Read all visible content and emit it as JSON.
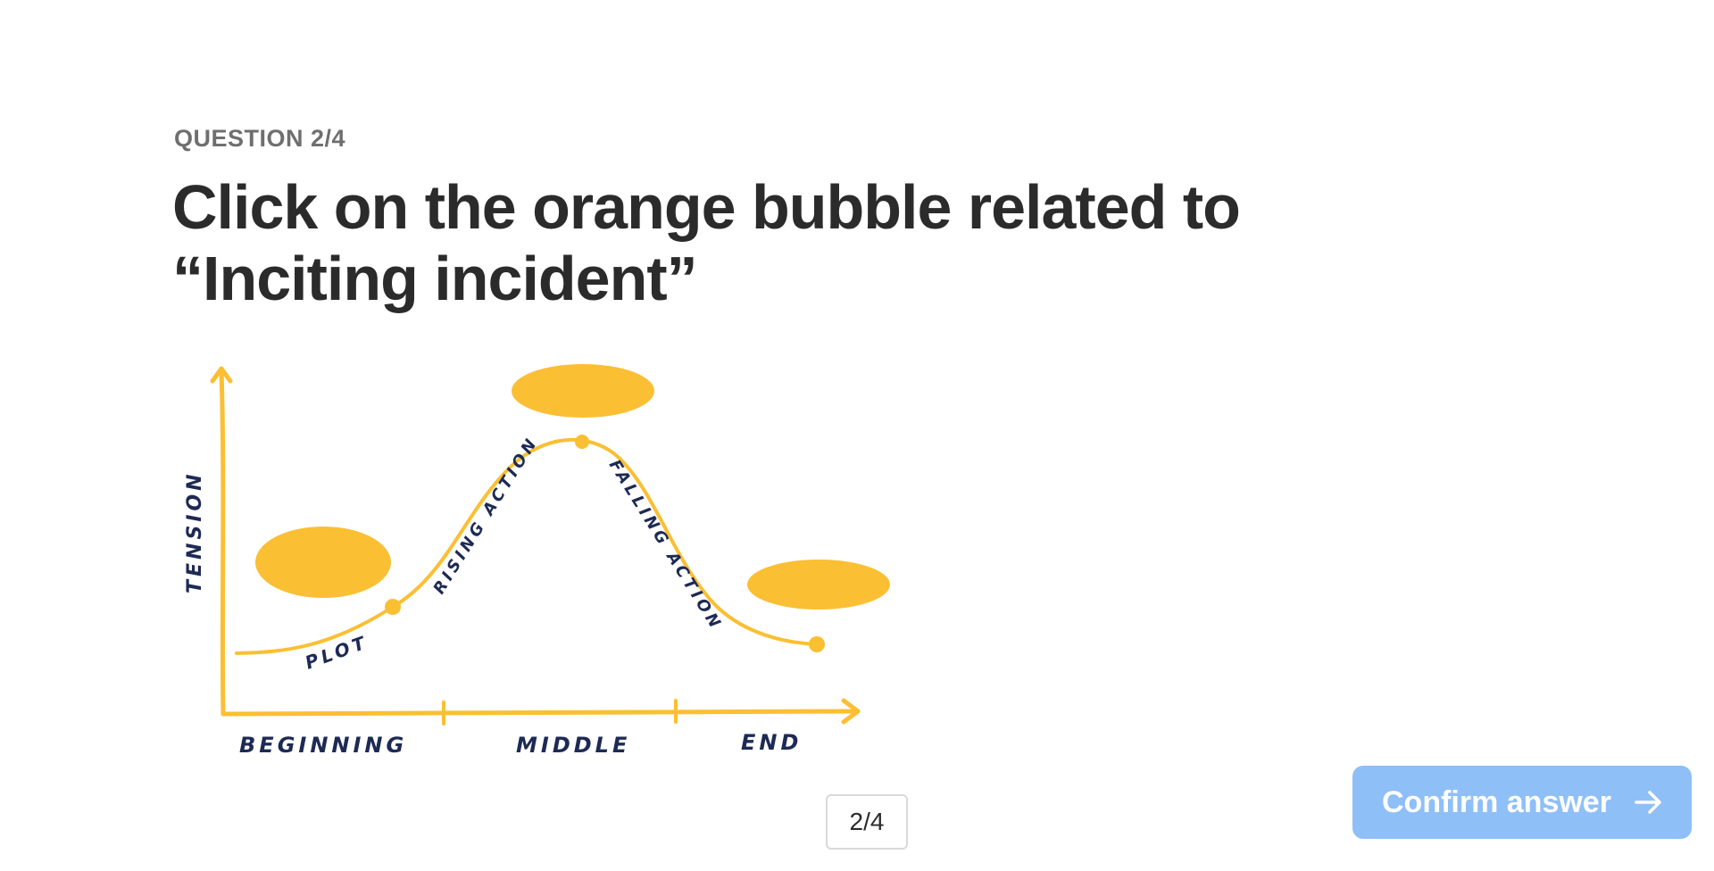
{
  "question": {
    "counter": "QUESTION 2/4",
    "title": "Click on the orange bubble related to “Inciting incident”"
  },
  "diagram": {
    "y_axis_label": "TENSION",
    "curve_labels": {
      "plot": "PLOT",
      "rising": "RISING ACTION",
      "falling": "FALLING ACTION"
    },
    "sections": [
      "BEGINNING",
      "MIDDLE",
      "END"
    ],
    "colors": {
      "accent": "#fbbf33",
      "ink": "#1d2a55"
    }
  },
  "pager": {
    "label": "2/4"
  },
  "confirm": {
    "label": "Confirm answer",
    "icon": "arrow-right-icon"
  }
}
